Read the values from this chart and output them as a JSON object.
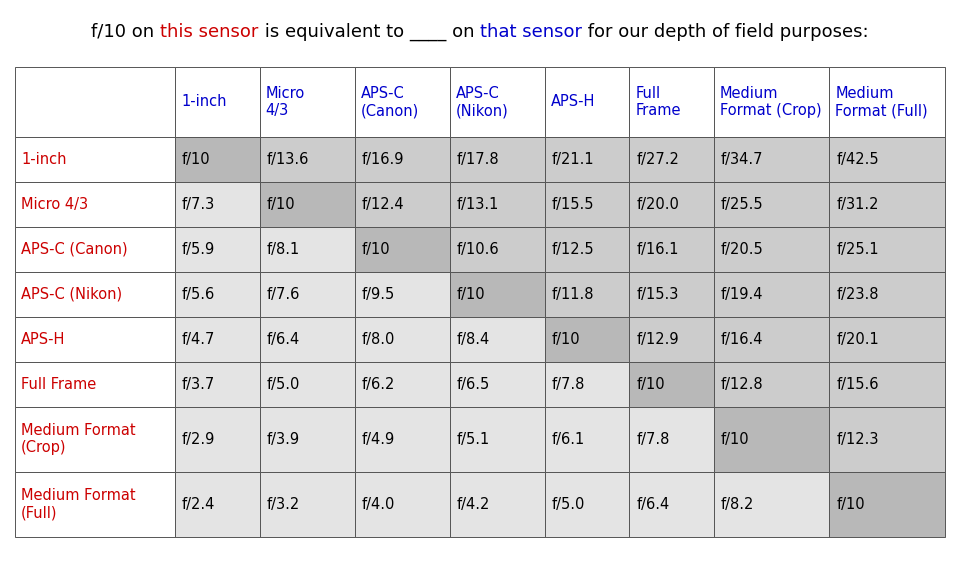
{
  "title_parts": [
    {
      "text": "f/10 on ",
      "color": "#000000"
    },
    {
      "text": "this sensor",
      "color": "#cc0000"
    },
    {
      "text": " is equivalent to ____ on ",
      "color": "#000000"
    },
    {
      "text": "that sensor",
      "color": "#0000cc"
    },
    {
      "text": " for our depth of field purposes:",
      "color": "#000000"
    }
  ],
  "col_headers": [
    "1-inch",
    "Micro\n4/3",
    "APS-C\n(Canon)",
    "APS-C\n(Nikon)",
    "APS-H",
    "Full\nFrame",
    "Medium\nFormat (Crop)",
    "Medium\nFormat (Full)"
  ],
  "row_headers": [
    "1-inch",
    "Micro 4/3",
    "APS-C (Canon)",
    "APS-C (Nikon)",
    "APS-H",
    "Full Frame",
    "Medium Format\n(Crop)",
    "Medium Format\n(Full)"
  ],
  "data": [
    [
      "f/10",
      "f/13.6",
      "f/16.9",
      "f/17.8",
      "f/21.1",
      "f/27.2",
      "f/34.7",
      "f/42.5"
    ],
    [
      "f/7.3",
      "f/10",
      "f/12.4",
      "f/13.1",
      "f/15.5",
      "f/20.0",
      "f/25.5",
      "f/31.2"
    ],
    [
      "f/5.9",
      "f/8.1",
      "f/10",
      "f/10.6",
      "f/12.5",
      "f/16.1",
      "f/20.5",
      "f/25.1"
    ],
    [
      "f/5.6",
      "f/7.6",
      "f/9.5",
      "f/10",
      "f/11.8",
      "f/15.3",
      "f/19.4",
      "f/23.8"
    ],
    [
      "f/4.7",
      "f/6.4",
      "f/8.0",
      "f/8.4",
      "f/10",
      "f/12.9",
      "f/16.4",
      "f/20.1"
    ],
    [
      "f/3.7",
      "f/5.0",
      "f/6.2",
      "f/6.5",
      "f/7.8",
      "f/10",
      "f/12.8",
      "f/15.6"
    ],
    [
      "f/2.9",
      "f/3.9",
      "f/4.9",
      "f/5.1",
      "f/6.1",
      "f/7.8",
      "f/10",
      "f/12.3"
    ],
    [
      "f/2.4",
      "f/3.2",
      "f/4.0",
      "f/4.2",
      "f/5.0",
      "f/6.4",
      "f/8.2",
      "f/10"
    ]
  ],
  "diagonal_color": "#b8b8b8",
  "above_diag_color": "#cccccc",
  "below_diag_color": "#e4e4e4",
  "white_color": "#ffffff",
  "row_label_color": "#cc0000",
  "col_label_color": "#0000cc",
  "border_color": "#555555",
  "cell_text_color": "#000000",
  "title_fontsize": 13.0,
  "cell_fontsize": 10.5,
  "figsize": [
    9.6,
    5.62
  ],
  "dpi": 100
}
